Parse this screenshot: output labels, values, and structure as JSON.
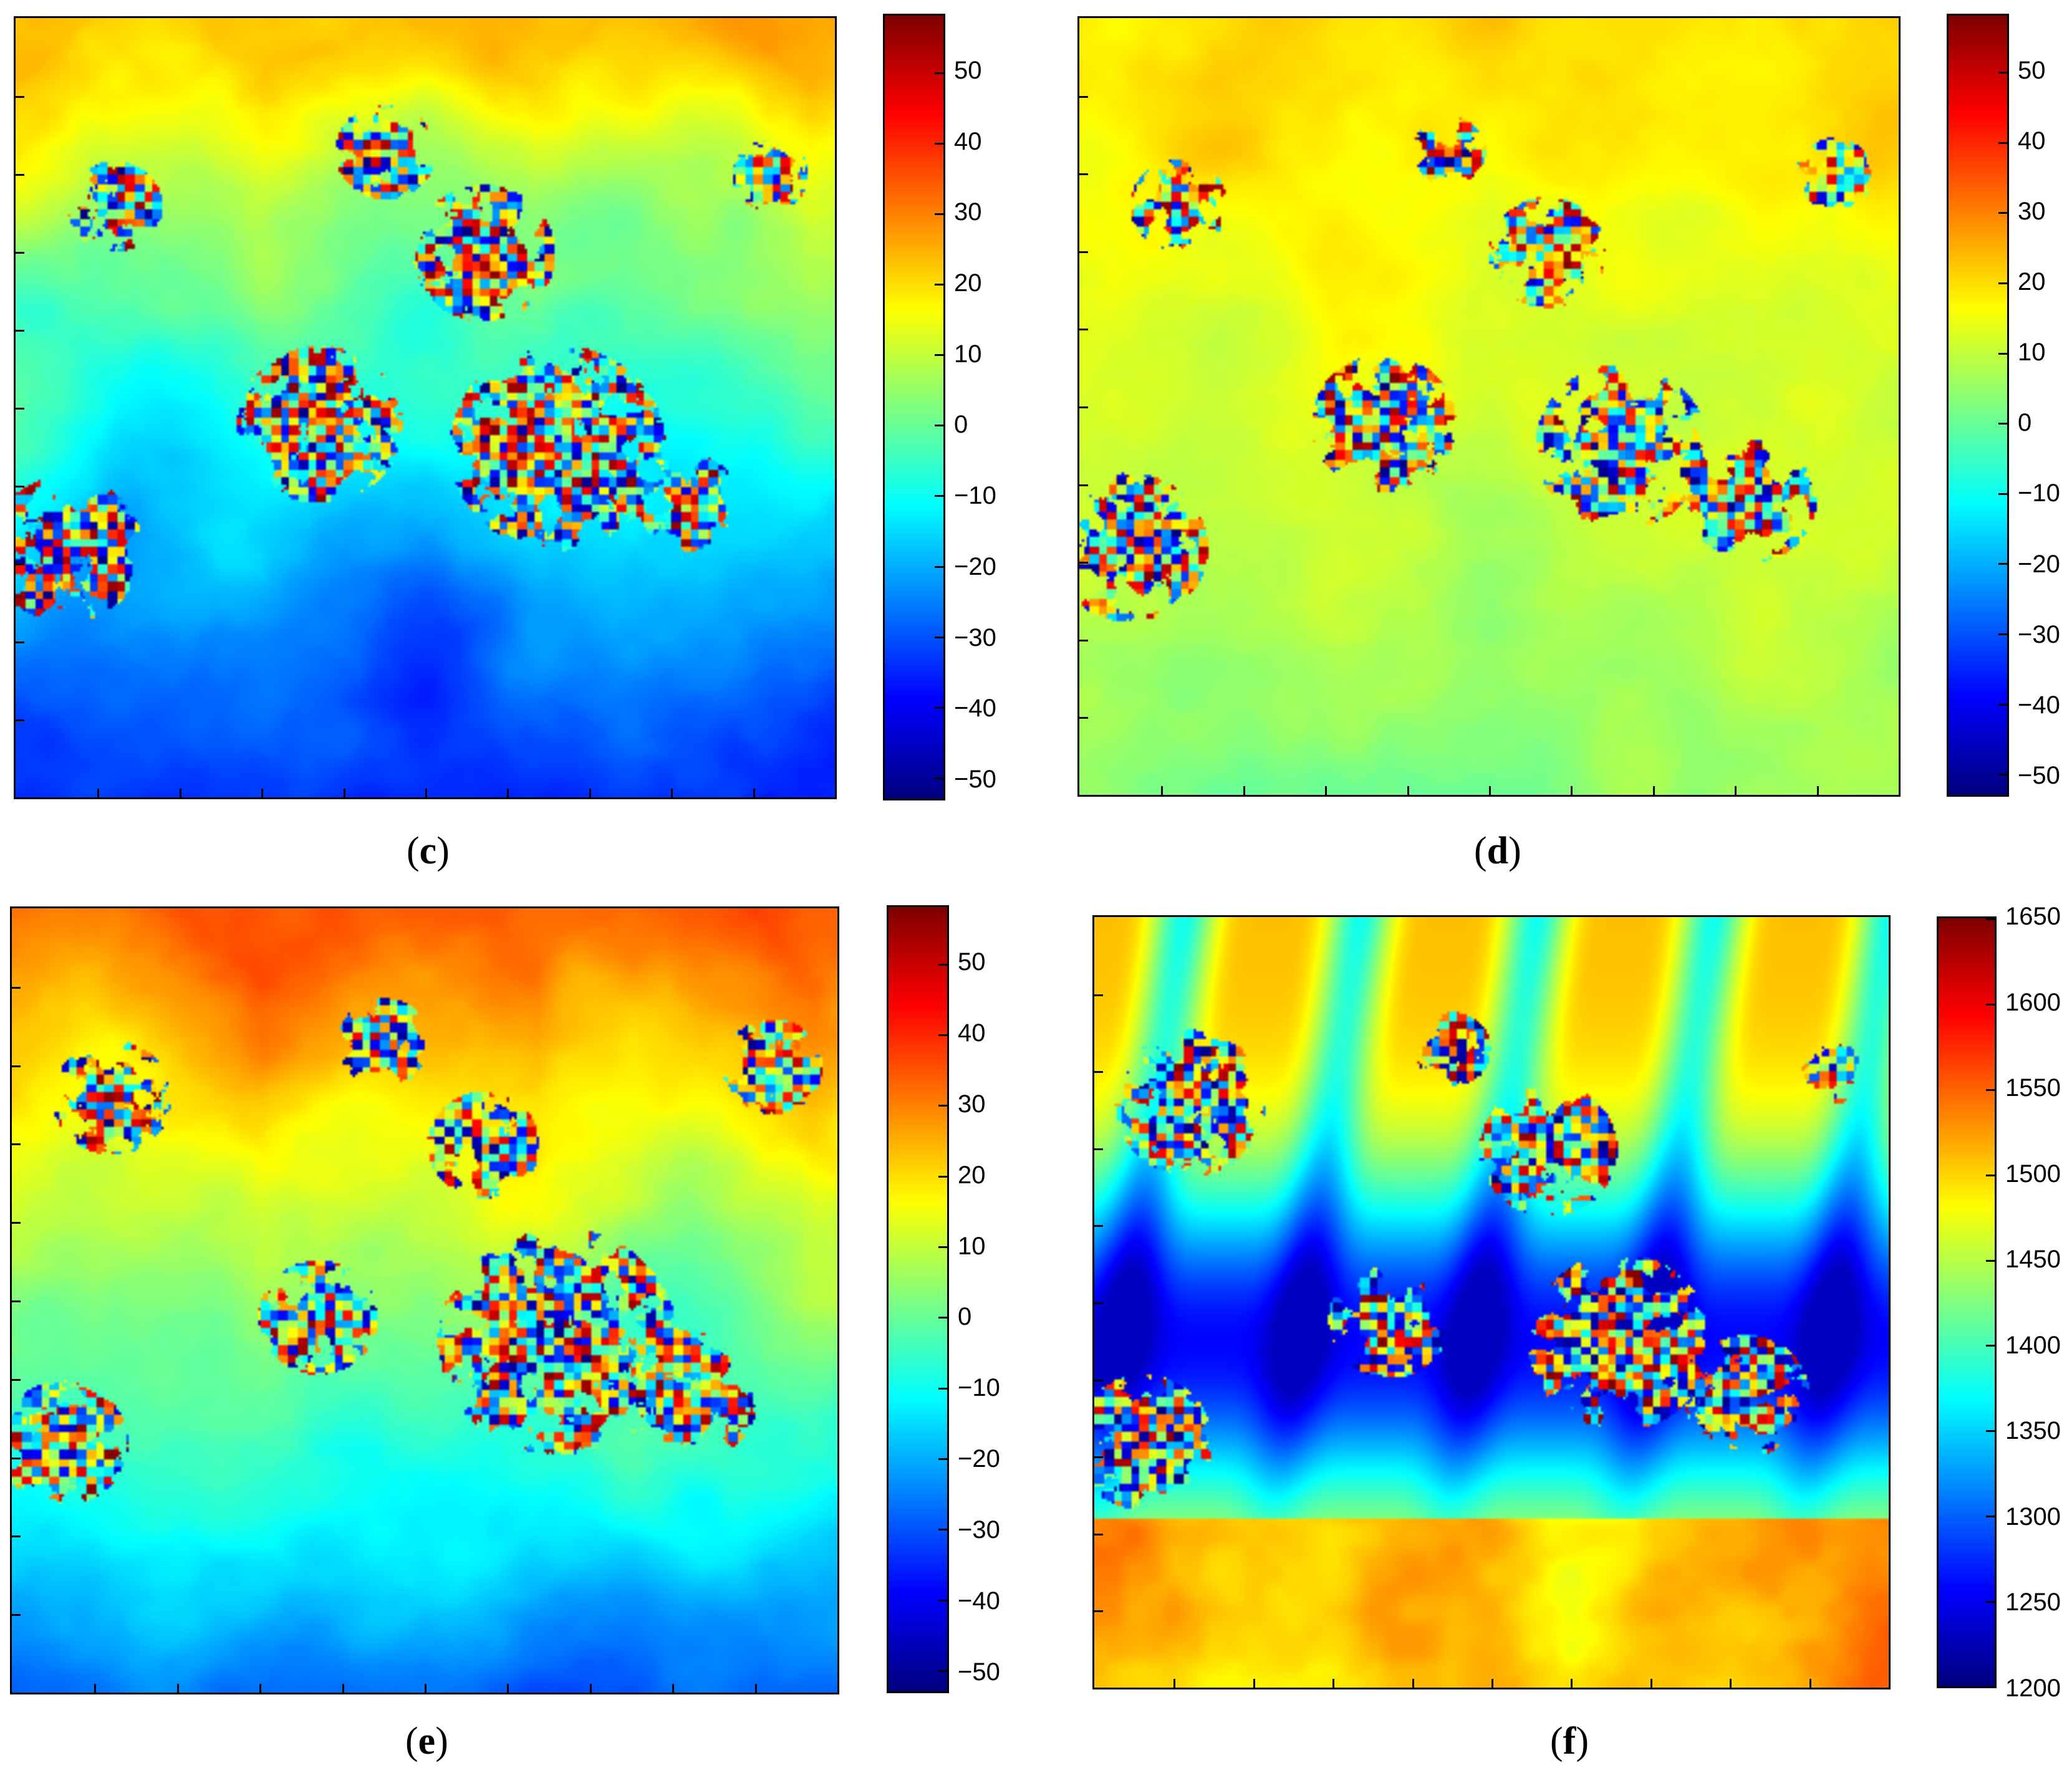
{
  "panels": [
    {
      "id": "c",
      "caption_open": "(",
      "caption_letter": "c",
      "caption_close": ")"
    },
    {
      "id": "d",
      "caption_open": "(",
      "caption_letter": "d",
      "caption_close": ")"
    },
    {
      "id": "e",
      "caption_open": "(",
      "caption_letter": "e",
      "caption_close": ")"
    },
    {
      "id": "f",
      "caption_open": "(",
      "caption_letter": "f",
      "caption_close": ")"
    }
  ],
  "chart_data": [
    {
      "type": "heatmap",
      "panel": "c",
      "title": "",
      "colormap": "jet",
      "colorbar": {
        "min": -53,
        "max": 58,
        "ticks": [
          "50",
          "40",
          "30",
          "20",
          "10",
          "0",
          "−10",
          "−20",
          "−30",
          "−40",
          "−50"
        ],
        "tick_values": [
          50,
          40,
          30,
          20,
          10,
          0,
          -10,
          -20,
          -30,
          -40,
          -50
        ]
      },
      "description_values": {
        "top_region": 25,
        "bottom_region": -40
      }
    },
    {
      "type": "heatmap",
      "panel": "d",
      "title": "",
      "colormap": "jet",
      "colorbar": {
        "min": -53,
        "max": 58,
        "ticks": [
          "50",
          "40",
          "30",
          "20",
          "10",
          "0",
          "−10",
          "−20",
          "−30",
          "−40",
          "−50"
        ],
        "tick_values": [
          50,
          40,
          30,
          20,
          10,
          0,
          -10,
          -20,
          -30,
          -40,
          -50
        ]
      },
      "description_values": {
        "top_region": 22,
        "bottom_region": 3
      }
    },
    {
      "type": "heatmap",
      "panel": "e",
      "title": "",
      "colormap": "jet",
      "colorbar": {
        "min": -53,
        "max": 58,
        "ticks": [
          "50",
          "40",
          "30",
          "20",
          "10",
          "0",
          "−10",
          "−20",
          "−30",
          "−40",
          "−50"
        ],
        "tick_values": [
          50,
          40,
          30,
          20,
          10,
          0,
          -10,
          -20,
          -30,
          -40,
          -50
        ]
      },
      "description_values": {
        "top_region": 35,
        "bottom_region": -30
      }
    },
    {
      "type": "heatmap",
      "panel": "f",
      "title": "",
      "colormap": "jet",
      "colorbar": {
        "min": 1200,
        "max": 1650,
        "ticks": [
          "1650",
          "1600",
          "1550",
          "1500",
          "1450",
          "1400",
          "1350",
          "1300",
          "1250",
          "1200"
        ],
        "tick_values": [
          1650,
          1600,
          1550,
          1500,
          1450,
          1400,
          1350,
          1300,
          1250,
          1200
        ]
      },
      "description_values": {
        "top_region": 1510,
        "bottom_region": 1480
      }
    }
  ]
}
